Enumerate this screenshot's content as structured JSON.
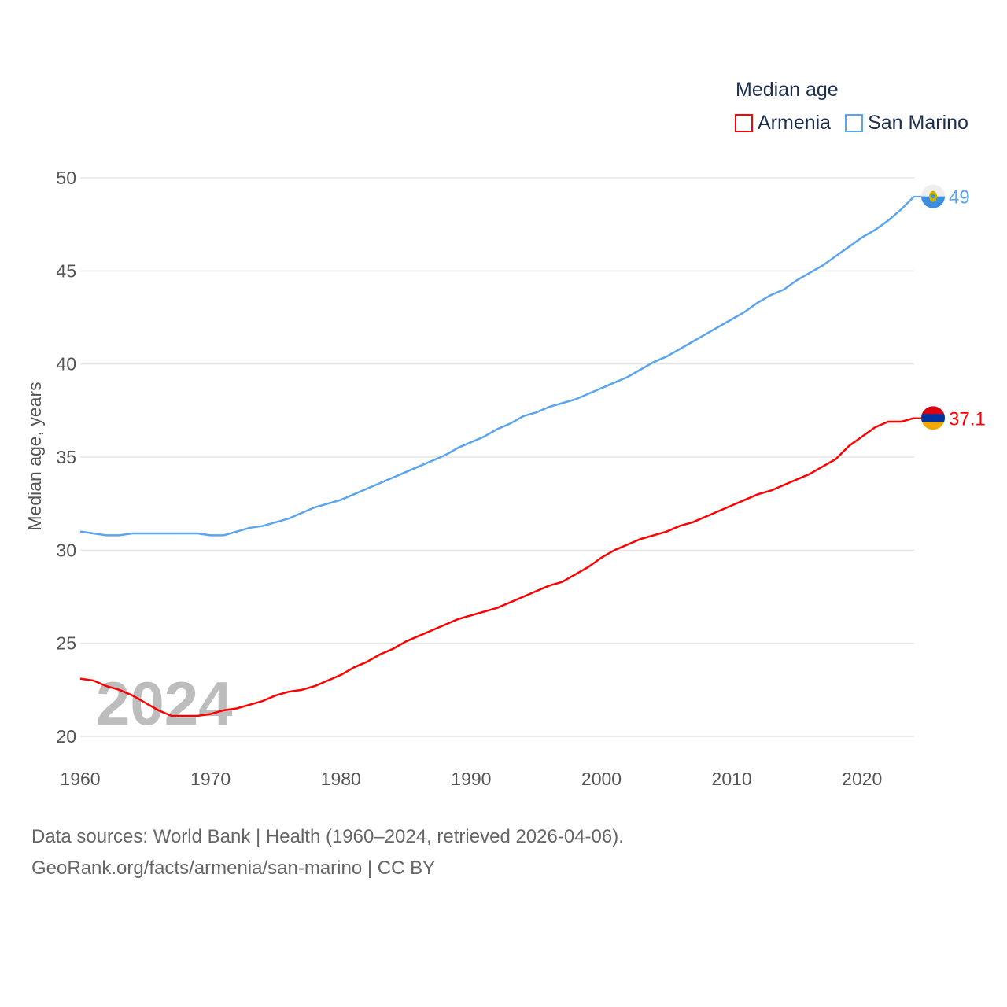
{
  "chart_data": {
    "type": "line",
    "title": "Median age",
    "xlabel": "",
    "ylabel": "Median age, years",
    "xlim": [
      1960,
      2024
    ],
    "ylim": [
      20,
      50
    ],
    "grid": true,
    "legend_position": "top-right",
    "x_ticks": [
      "1960",
      "1970",
      "1980",
      "1990",
      "2000",
      "2010",
      "2020"
    ],
    "y_ticks": [
      "20",
      "25",
      "30",
      "35",
      "40",
      "45",
      "50"
    ],
    "watermark_year": "2024",
    "x": [
      1960,
      1961,
      1962,
      1963,
      1964,
      1965,
      1966,
      1967,
      1968,
      1969,
      1970,
      1971,
      1972,
      1973,
      1974,
      1975,
      1976,
      1977,
      1978,
      1979,
      1980,
      1981,
      1982,
      1983,
      1984,
      1985,
      1986,
      1987,
      1988,
      1989,
      1990,
      1991,
      1992,
      1993,
      1994,
      1995,
      1996,
      1997,
      1998,
      1999,
      2000,
      2001,
      2002,
      2003,
      2004,
      2005,
      2006,
      2007,
      2008,
      2009,
      2010,
      2011,
      2012,
      2013,
      2014,
      2015,
      2016,
      2017,
      2018,
      2019,
      2020,
      2021,
      2022,
      2023,
      2024
    ],
    "series": [
      {
        "name": "Armenia",
        "color": "#ff0000",
        "end_label": "37.1",
        "values": [
          23.1,
          23.0,
          22.7,
          22.5,
          22.2,
          21.8,
          21.4,
          21.1,
          21.1,
          21.1,
          21.2,
          21.4,
          21.5,
          21.7,
          21.9,
          22.2,
          22.4,
          22.5,
          22.7,
          23.0,
          23.3,
          23.7,
          24.0,
          24.4,
          24.7,
          25.1,
          25.4,
          25.7,
          26.0,
          26.3,
          26.5,
          26.7,
          26.9,
          27.2,
          27.5,
          27.8,
          28.1,
          28.3,
          28.7,
          29.1,
          29.6,
          30.0,
          30.3,
          30.6,
          30.8,
          31.0,
          31.3,
          31.5,
          31.8,
          32.1,
          32.4,
          32.7,
          33.0,
          33.2,
          33.5,
          33.8,
          34.1,
          34.5,
          34.9,
          35.6,
          36.1,
          36.6,
          36.9,
          36.9,
          37.1
        ]
      },
      {
        "name": "San Marino",
        "color": "#5ba4ee",
        "end_label": "49",
        "values": [
          31.0,
          30.9,
          30.8,
          30.8,
          30.9,
          30.9,
          30.9,
          30.9,
          30.9,
          30.9,
          30.8,
          30.8,
          31.0,
          31.2,
          31.3,
          31.5,
          31.7,
          32.0,
          32.3,
          32.5,
          32.7,
          33.0,
          33.3,
          33.6,
          33.9,
          34.2,
          34.5,
          34.8,
          35.1,
          35.5,
          35.8,
          36.1,
          36.5,
          36.8,
          37.2,
          37.4,
          37.7,
          37.9,
          38.1,
          38.4,
          38.7,
          39.0,
          39.3,
          39.7,
          40.1,
          40.4,
          40.8,
          41.2,
          41.6,
          42.0,
          42.4,
          42.8,
          43.3,
          43.7,
          44.0,
          44.5,
          44.9,
          45.3,
          45.8,
          46.3,
          46.8,
          47.2,
          47.7,
          48.3,
          49.0
        ]
      }
    ]
  },
  "footer": {
    "sources": "Data sources: World Bank | Health (1960–2024, retrieved 2026-04-06).",
    "credit": "GeoRank.org/facts/armenia/san-marino | CC BY"
  }
}
